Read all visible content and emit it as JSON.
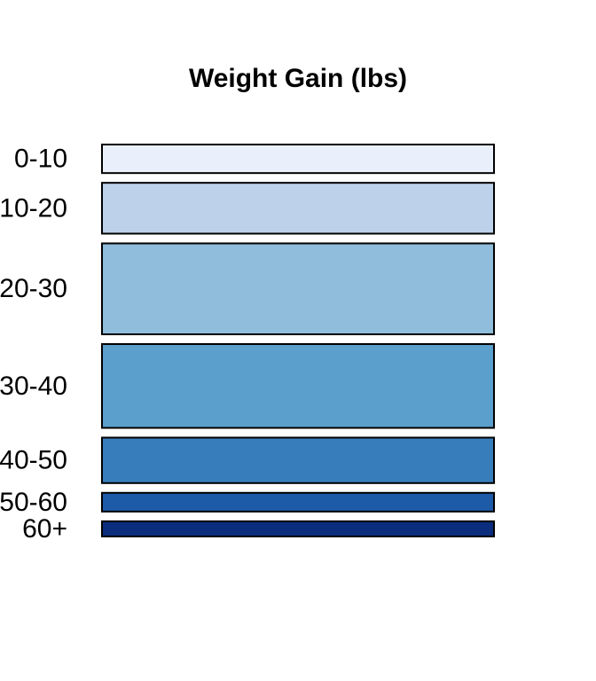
{
  "chart_data": {
    "type": "bar",
    "orientation": "horizontal",
    "title": "Weight Gain (lbs)",
    "categories": [
      "0-10",
      "10-20",
      "20-30",
      "30-40",
      "40-50",
      "50-60",
      "60+"
    ],
    "values": [
      32,
      57,
      102,
      94,
      51,
      21,
      17
    ],
    "colors": [
      "#eaf0fb",
      "#bdd1eb",
      "#8fbddb",
      "#5b9fcc",
      "#377dbb",
      "#1d5ba8",
      "#0a2e7d"
    ],
    "grid": false,
    "legend": "none",
    "xlabel": "",
    "ylabel": ""
  }
}
